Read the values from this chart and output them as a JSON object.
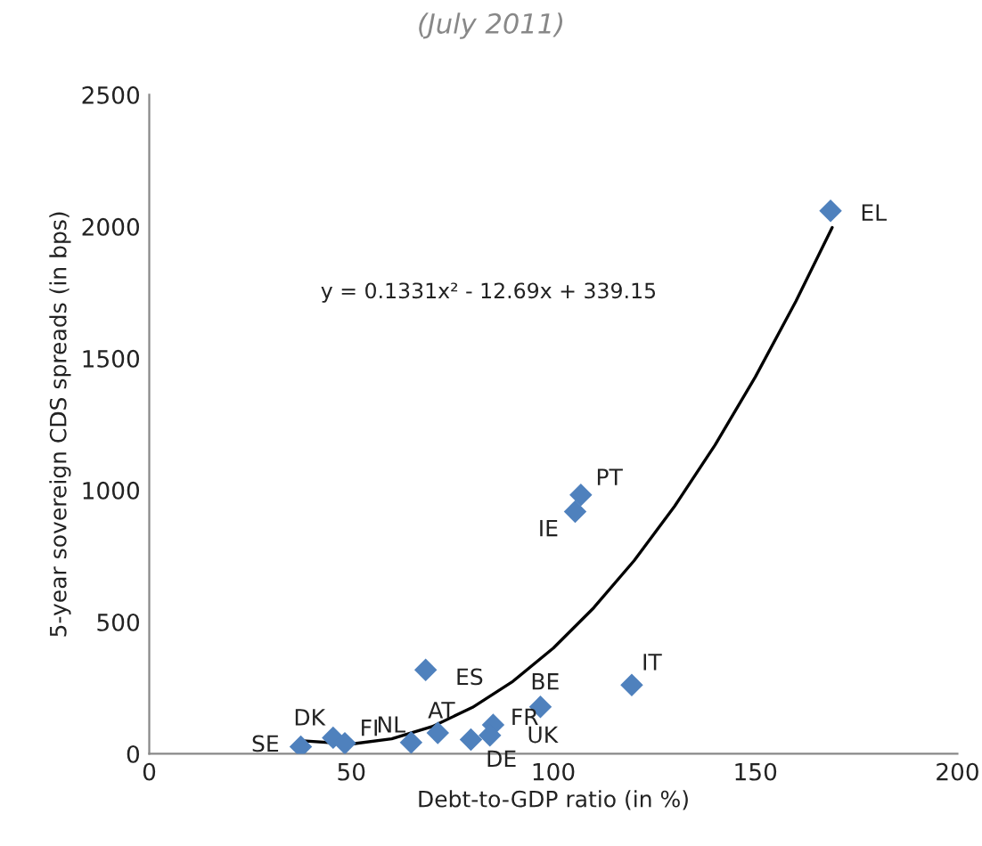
{
  "chart_data": {
    "type": "scatter",
    "title": "(July 2011)",
    "xlabel": "Debt-to-GDP ratio (in %)",
    "ylabel": "5-year sovereign CDS spreads (in bps)",
    "xlim": [
      0,
      200
    ],
    "ylim": [
      0,
      2500
    ],
    "xticks": [
      0,
      50,
      100,
      150,
      200
    ],
    "yticks": [
      0,
      500,
      1000,
      1500,
      2000,
      2500
    ],
    "grid": false,
    "legend": false,
    "marker": "diamond",
    "series": [
      {
        "color": "#4f81bd",
        "x": [
          37.5,
          45.5,
          48.4,
          64.8,
          71.4,
          68.4,
          96.8,
          119.4,
          85.1,
          79.6,
          84.3,
          106.8,
          105.4,
          168.6
        ],
        "values": [
          27,
          61,
          40,
          43,
          79,
          318,
          178,
          261,
          110,
          54,
          70,
          982,
          919,
          2060
        ],
        "value_labels": [
          "SE",
          "DK",
          "FI",
          "NL",
          "AT",
          "ES",
          "BE",
          "IT",
          "FR",
          "DE",
          "UK",
          "PT",
          "IE",
          "EL"
        ]
      },
      {
        "type": "line",
        "color": "#000000",
        "marker": "none",
        "x": [
          38,
          50,
          60,
          70,
          80,
          90,
          100,
          110,
          120,
          130,
          140,
          150,
          160,
          169
        ],
        "values": [
          49,
          37,
          57,
          103,
          176,
          275,
          401,
          554,
          733,
          939,
          1171,
          1430,
          1716,
          1996
        ]
      }
    ],
    "annotations": [
      "y = 0.1331x² - 12.69x + 339.15"
    ]
  }
}
